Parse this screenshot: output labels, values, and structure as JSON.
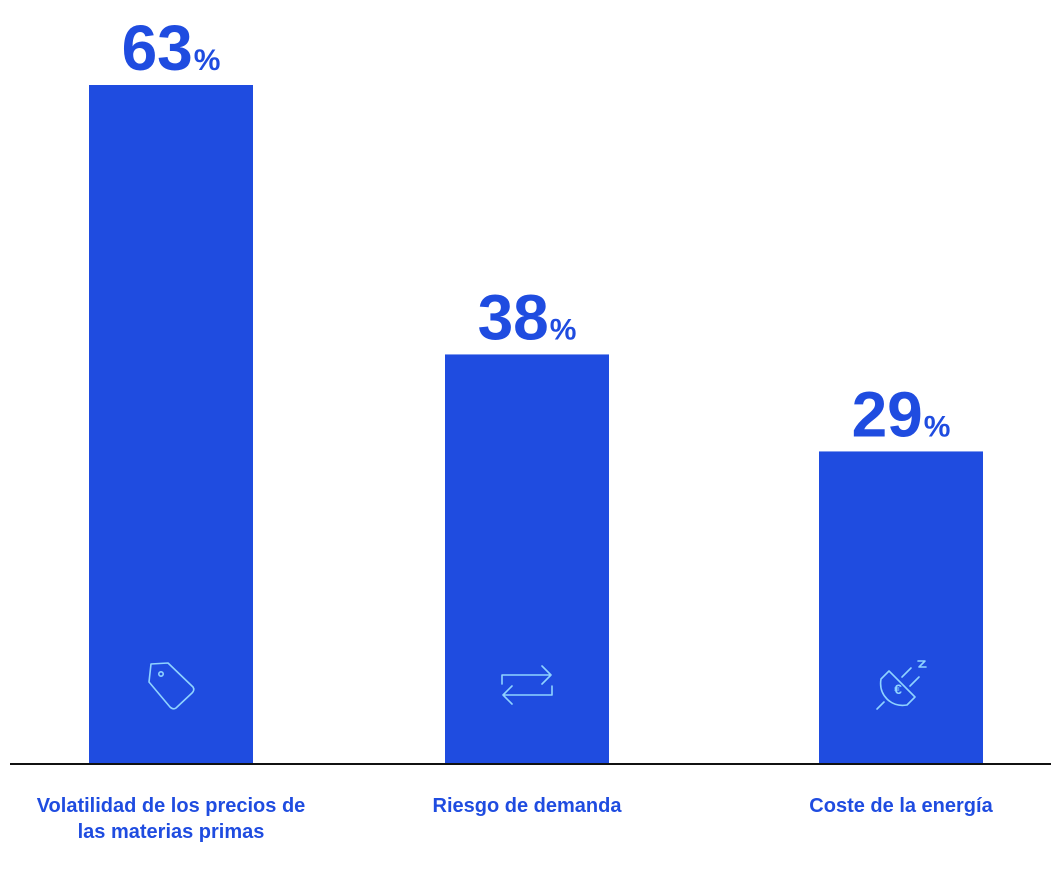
{
  "chart_data": {
    "type": "bar",
    "title": "",
    "xlabel": "",
    "ylabel": "",
    "ylim": [
      0,
      63
    ],
    "grid": false,
    "categories": [
      "Volatilidad de los precios de las materias primas",
      "Riesgo de demanda",
      "Coste de la energía"
    ],
    "values": [
      63,
      38,
      29
    ],
    "value_unit": "%",
    "value_labels": [
      "63",
      "38",
      "29"
    ],
    "icons": [
      "price-tag-icon",
      "exchange-arrows-icon",
      "plug-euro-icon"
    ],
    "colors": {
      "bar": "#1f4ce0",
      "value_label": "#1f4ce0",
      "category_label": "#1f4ce0",
      "icon_stroke": "#8fd3ff",
      "axis": "#111111"
    }
  }
}
